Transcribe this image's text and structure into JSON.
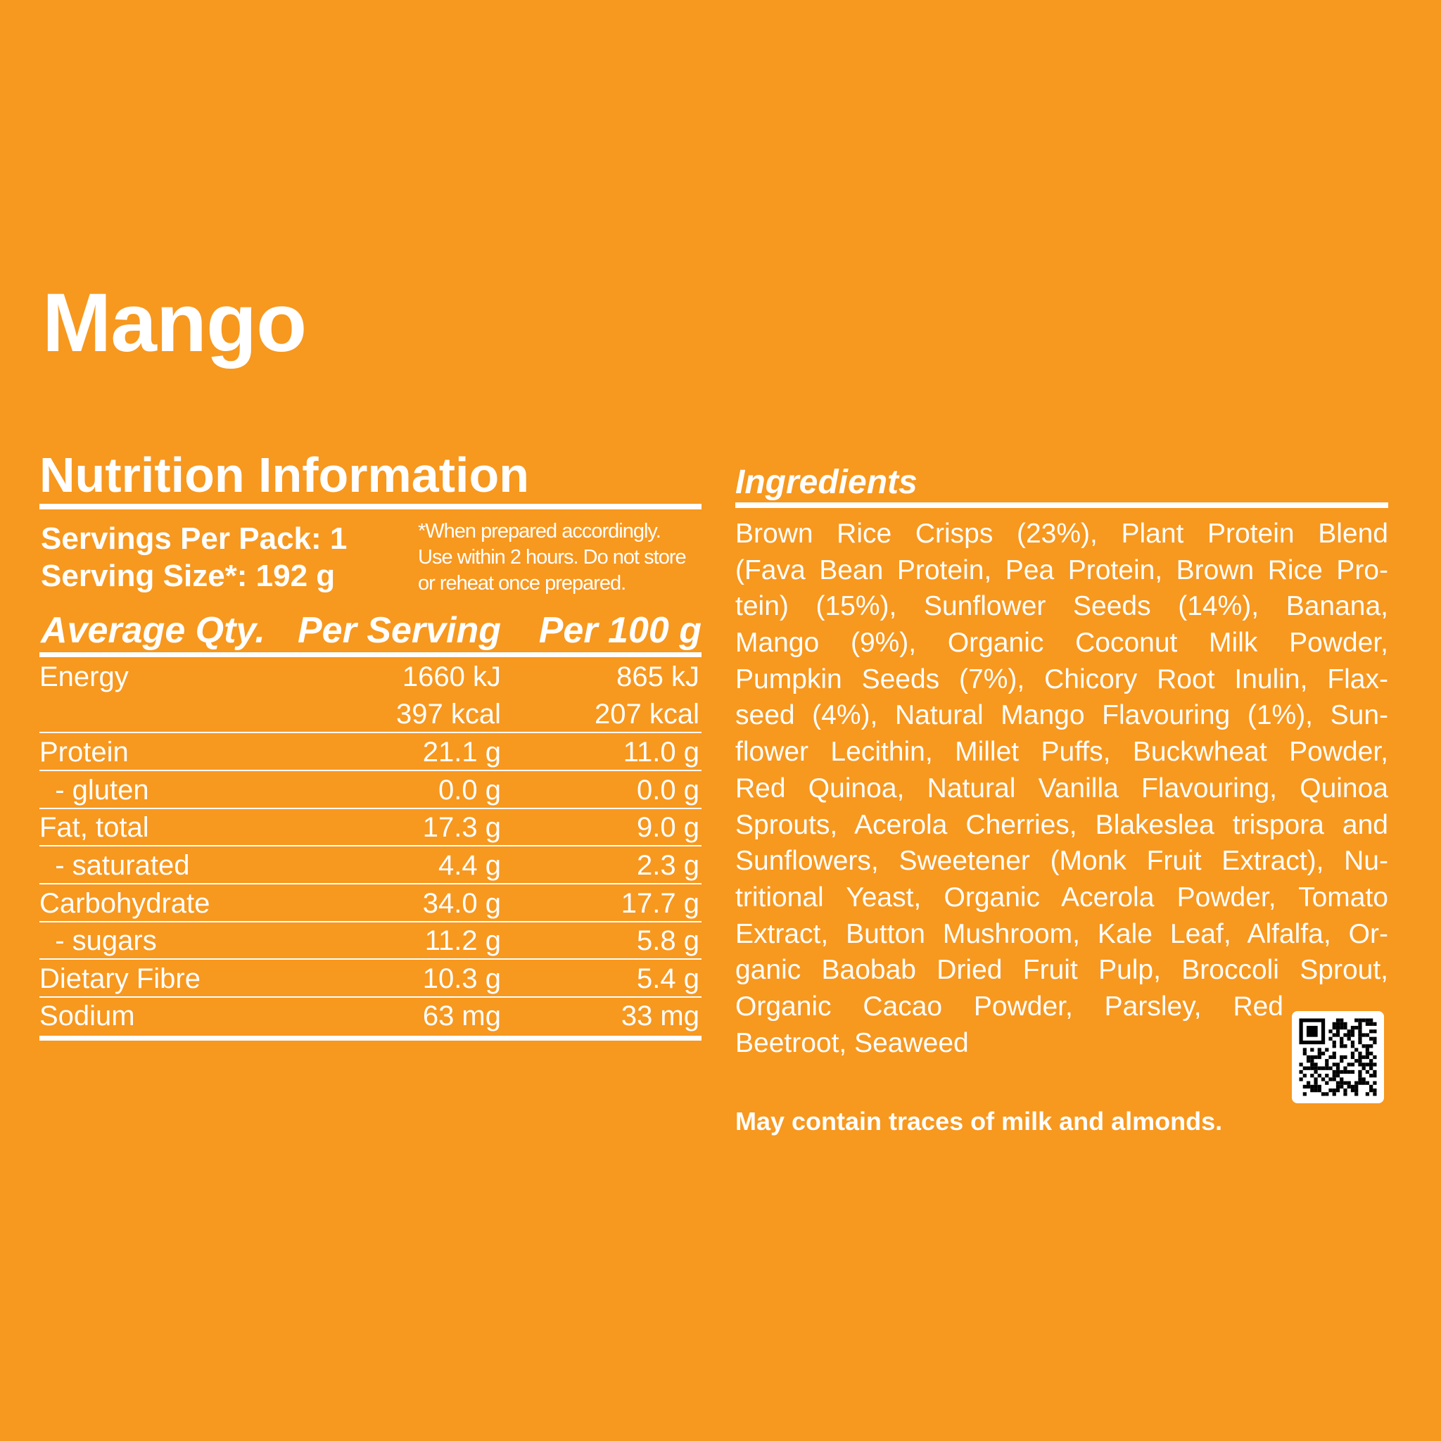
{
  "product": {
    "title": "Mango"
  },
  "nutrition": {
    "title": "Nutrition Information",
    "servings_per_pack": "Servings Per Pack: 1",
    "serving_size": "Serving Size*: 192 g",
    "note_lines": [
      "*When prepared accordingly.",
      "Use within 2 hours. Do not store",
      "or reheat once prepared."
    ],
    "headers": {
      "label": "Average Qty.",
      "per_serving": "Per Serving",
      "per_100g": "Per 100 g"
    },
    "rows": [
      {
        "label": "Energy",
        "per_serving": "1660 kJ",
        "per_100g": "865 kJ"
      },
      {
        "label": "",
        "per_serving": "397 kcal",
        "per_100g": "207 kcal"
      },
      {
        "label": "Protein",
        "per_serving": "21.1 g",
        "per_100g": "11.0 g"
      },
      {
        "label": "  - gluten",
        "per_serving": "0.0 g",
        "per_100g": "0.0 g"
      },
      {
        "label": "Fat, total",
        "per_serving": "17.3 g",
        "per_100g": "9.0 g"
      },
      {
        "label": "  - saturated",
        "per_serving": "4.4 g",
        "per_100g": "2.3 g"
      },
      {
        "label": "Carbohydrate",
        "per_serving": "34.0 g",
        "per_100g": "17.7 g"
      },
      {
        "label": "  - sugars",
        "per_serving": "11.2 g",
        "per_100g": "5.8 g"
      },
      {
        "label": "Dietary Fibre",
        "per_serving": "10.3 g",
        "per_100g": "5.4 g"
      },
      {
        "label": "Sodium",
        "per_serving": "63 mg",
        "per_100g": "33 mg"
      }
    ]
  },
  "ingredients": {
    "title": "Ingredients",
    "lines": [
      "Brown Rice Crisps (23%), Plant Protein Blend",
      "(Fava Bean Protein, Pea Protein, Brown Rice Pro-",
      "tein) (15%), Sunflower Seeds (14%), Banana,",
      "Mango (9%), Organic Coconut Milk Powder,",
      "Pumpkin Seeds (7%), Chicory Root Inulin, Flax-",
      "seed (4%), Natural Mango Flavouring (1%), Sun-",
      "flower Lecithin, Millet Puffs, Buckwheat Powder,",
      "Red Quinoa, Natural Vanilla Flavouring, Quinoa",
      "Sprouts, Acerola Cherries, Blakeslea trispora and",
      "Sunflowers, Sweetener (Monk Fruit Extract), Nu-",
      "tritional Yeast, Organic Acerola Powder, Tomato",
      "Extract, Button Mushroom, Kale Leaf, Alfalfa, Or-",
      "ganic Baobab Dried Fruit Pulp, Broccoli Sprout,",
      "Organic Cacao Powder, Parsley, Red",
      "Beetroot, Seaweed"
    ],
    "allergen": "May contain traces of milk and almonds."
  },
  "qr_icon": "qr-code-icon",
  "colors": {
    "background": "#F7981F",
    "text": "#FFFFFF"
  }
}
